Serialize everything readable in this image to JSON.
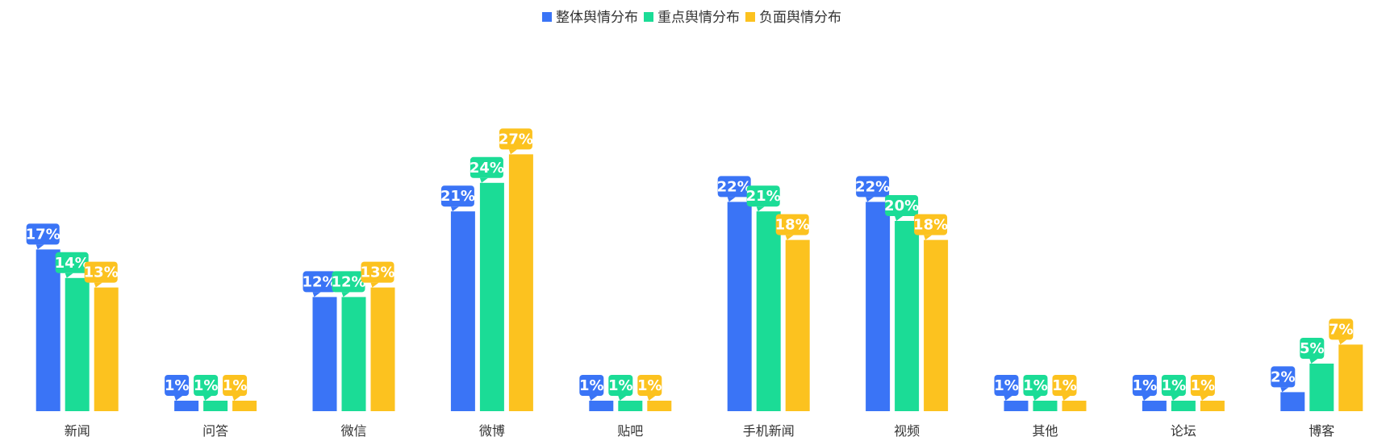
{
  "chart_data": {
    "type": "bar",
    "categories": [
      "新闻",
      "问答",
      "微信",
      "微博",
      "贴吧",
      "手机新闻",
      "视频",
      "其他",
      "论坛",
      "博客"
    ],
    "series": [
      {
        "name": "整体舆情分布",
        "color": "#3a74f6",
        "values": [
          17,
          1,
          12,
          21,
          1,
          22,
          22,
          1,
          1,
          2
        ]
      },
      {
        "name": "重点舆情分布",
        "color": "#1bdc96",
        "values": [
          14,
          1,
          12,
          24,
          1,
          21,
          20,
          1,
          1,
          5
        ]
      },
      {
        "name": "负面舆情分布",
        "color": "#fcc21f",
        "values": [
          13,
          1,
          13,
          27,
          1,
          18,
          18,
          1,
          1,
          7
        ]
      }
    ],
    "value_suffix": "%",
    "ylim": [
      0,
      30
    ],
    "grid": false,
    "legend_position": "top-center"
  }
}
